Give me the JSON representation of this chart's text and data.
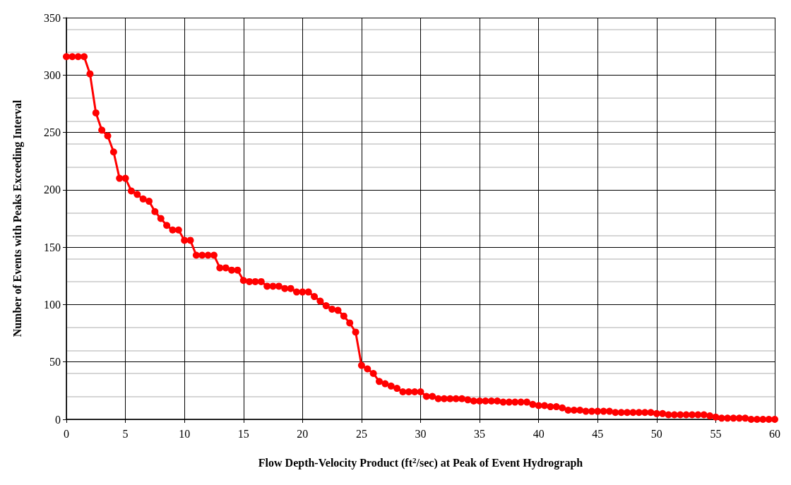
{
  "chart_data": {
    "type": "line",
    "xlabel": "Flow Depth-Velocity Product (ft$^{2}$/sec) at Peak of Event Hydrograph",
    "ylabel": "Number of Events with Peaks Exceeding Interval",
    "x": [
      0,
      0.5,
      1,
      1.5,
      2,
      2.5,
      3,
      3.5,
      4,
      4.5,
      5,
      5.5,
      6,
      6.5,
      7,
      7.5,
      8,
      8.5,
      9,
      9.5,
      10,
      10.5,
      11,
      11.5,
      12,
      12.5,
      13,
      13.5,
      14,
      14.5,
      15,
      15.5,
      16,
      16.5,
      17,
      17.5,
      18,
      18.5,
      19,
      19.5,
      20,
      20.5,
      21,
      21.5,
      22,
      22.5,
      23,
      23.5,
      24,
      24.5,
      25,
      25.5,
      26,
      26.5,
      27,
      27.5,
      28,
      28.5,
      29,
      29.5,
      30,
      30.5,
      31,
      31.5,
      32,
      32.5,
      33,
      33.5,
      34,
      34.5,
      35,
      35.5,
      36,
      36.5,
      37,
      37.5,
      38,
      38.5,
      39,
      39.5,
      40,
      40.5,
      41,
      41.5,
      42,
      42.5,
      43,
      43.5,
      44,
      44.5,
      45,
      45.5,
      46,
      46.5,
      47,
      47.5,
      48,
      48.5,
      49,
      49.5,
      50,
      50.5,
      51,
      51.5,
      52,
      52.5,
      53,
      53.5,
      54,
      54.5,
      55,
      55.5,
      56,
      56.5,
      57,
      57.5,
      58,
      58.5,
      59,
      59.5,
      60
    ],
    "series": [
      {
        "color": "#ff0000",
        "values": [
          316,
          316,
          316,
          316,
          301,
          267,
          252,
          247,
          233,
          210,
          210,
          199,
          196,
          192,
          190,
          181,
          175,
          169,
          165,
          165,
          156,
          156,
          143,
          143,
          143,
          143,
          132,
          132,
          130,
          130,
          121,
          120,
          120,
          120,
          116,
          116,
          116,
          114,
          114,
          111,
          111,
          111,
          107,
          103,
          99,
          96,
          95,
          90,
          84,
          76,
          47,
          44,
          40,
          33,
          31,
          29,
          27,
          24,
          24,
          24,
          24,
          20,
          20,
          18,
          18,
          18,
          18,
          18,
          17,
          16,
          16,
          16,
          16,
          16,
          15,
          15,
          15,
          15,
          15,
          13,
          12,
          12,
          11,
          11,
          10,
          8,
          8,
          8,
          7,
          7,
          7,
          7,
          7,
          6,
          6,
          6,
          6,
          6,
          6,
          6,
          5,
          5,
          4,
          4,
          4,
          4,
          4,
          4,
          4,
          3,
          2,
          1,
          1,
          1,
          1,
          1,
          0,
          0,
          0,
          0,
          0
        ]
      }
    ],
    "xlim": [
      0,
      60
    ],
    "xticks": [
      0,
      5,
      10,
      15,
      20,
      25,
      30,
      35,
      40,
      45,
      50,
      55,
      60
    ],
    "ylim": [
      0,
      350
    ],
    "yticks": [
      0,
      50,
      100,
      150,
      200,
      250,
      300,
      350
    ],
    "grid": true,
    "marker": "circle",
    "line_style": "solid"
  }
}
